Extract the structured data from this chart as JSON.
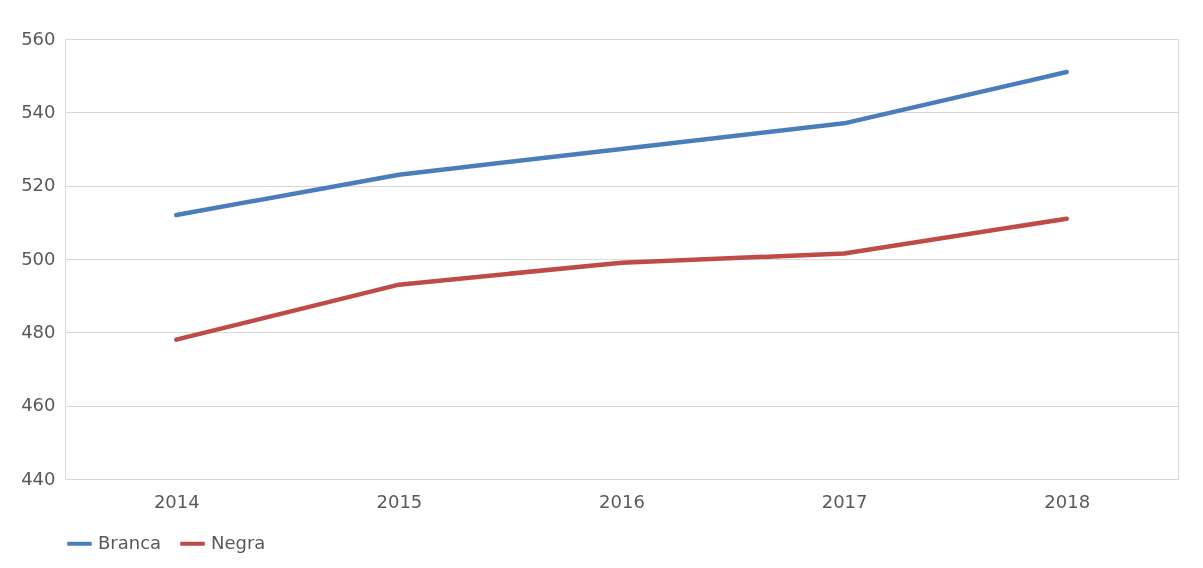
{
  "chart_data": {
    "type": "line",
    "categories": [
      "2014",
      "2015",
      "2016",
      "2017",
      "2018"
    ],
    "series": [
      {
        "name": "Branca",
        "color": "#4a7ebb",
        "values": [
          512,
          523,
          530,
          537,
          551
        ]
      },
      {
        "name": "Negra",
        "color": "#be4b48",
        "values": [
          478,
          493,
          499,
          501.5,
          511
        ]
      }
    ],
    "ylim": [
      440,
      560
    ],
    "yticks": [
      440,
      460,
      480,
      500,
      520,
      540,
      560
    ],
    "grid": "y",
    "legend": "bottom",
    "marker": "none",
    "line_style": "solid"
  }
}
